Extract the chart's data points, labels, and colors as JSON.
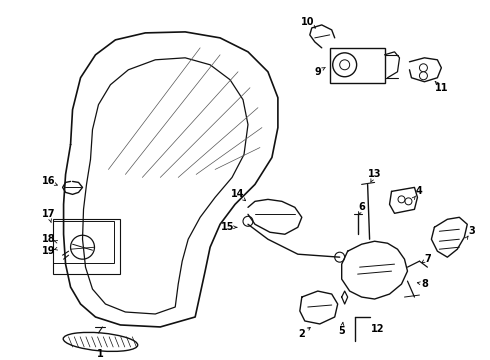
{
  "bg_color": "#ffffff",
  "line_color": "#111111",
  "text_color": "#000000",
  "fig_width": 4.9,
  "fig_height": 3.6,
  "dpi": 100
}
